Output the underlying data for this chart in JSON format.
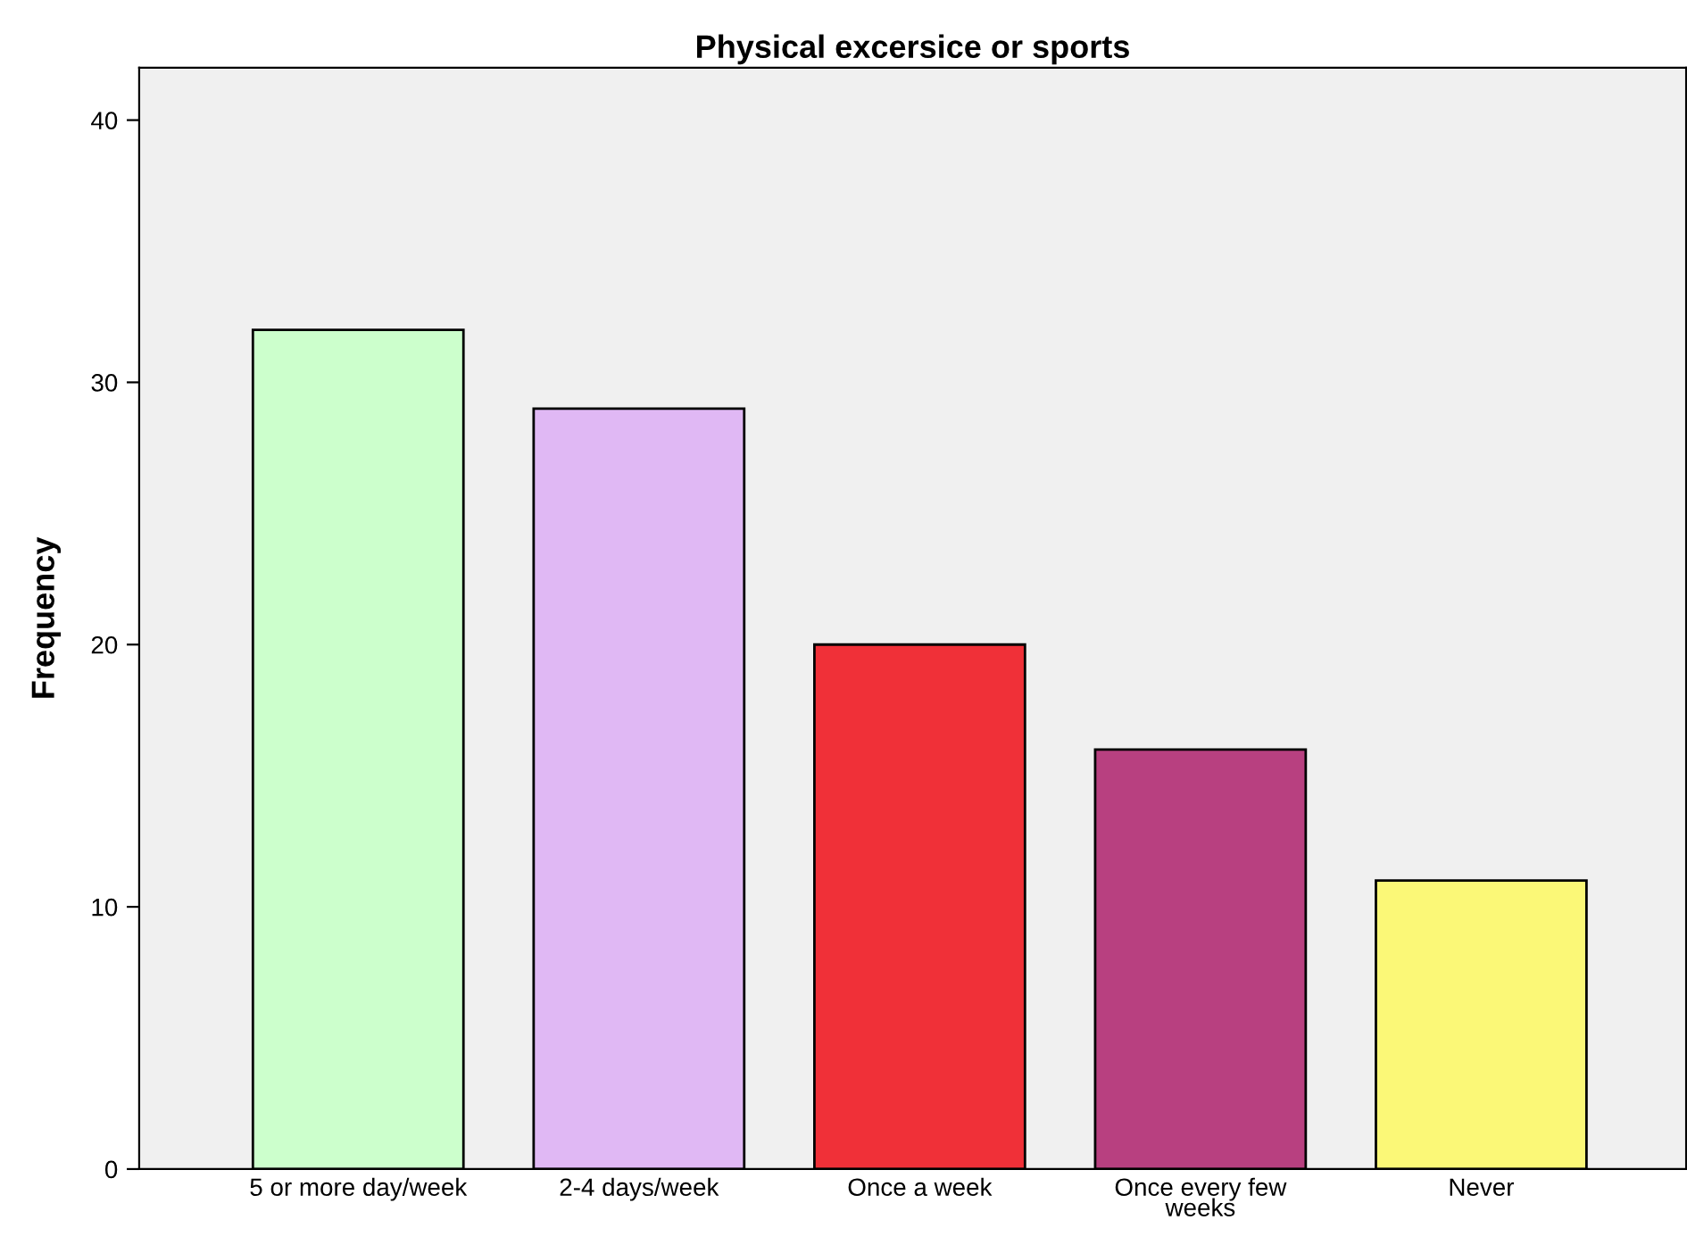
{
  "chart_data": {
    "type": "bar",
    "title": "Physical excersice or sports",
    "ylabel": "Frequency",
    "categories": [
      "5 or more day/week",
      "2-4 days/week",
      "Once a week",
      "Once every few\nweeks",
      "Never"
    ],
    "values": [
      32,
      29,
      20,
      16,
      11
    ],
    "colors": [
      "#ccffcc",
      "#e0b8f4",
      "#f03038",
      "#b84080",
      "#fbf877"
    ],
    "ylim": [
      0,
      42
    ],
    "yticks": [
      0,
      10,
      20,
      30,
      40
    ],
    "grid": false,
    "legend": false
  }
}
